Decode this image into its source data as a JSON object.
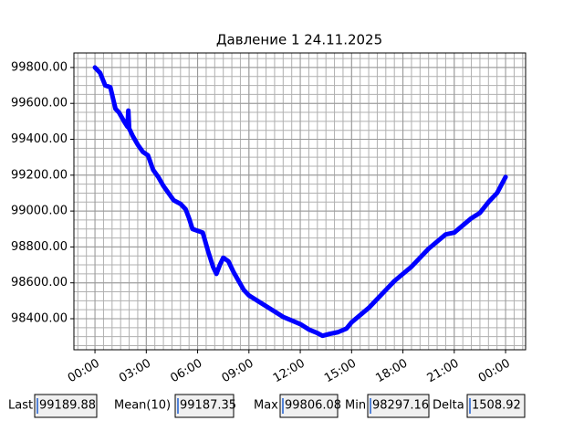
{
  "chart_data": {
    "type": "line",
    "title": "Давление 1 24.11.2025",
    "x": [
      0,
      0.3,
      0.6,
      0.9,
      1.2,
      1.4,
      1.7,
      1.9,
      1.95,
      2.0,
      2.2,
      2.5,
      2.8,
      3.1,
      3.4,
      3.7,
      4.0,
      4.3,
      4.6,
      5.0,
      5.3,
      5.5,
      5.7,
      6.0,
      6.3,
      6.6,
      6.9,
      7.1,
      7.3,
      7.5,
      7.8,
      8.1,
      8.4,
      8.7,
      9.0,
      9.5,
      10.0,
      10.5,
      11.0,
      11.5,
      12.0,
      12.5,
      13.0,
      13.3,
      13.7,
      14.2,
      14.7,
      15.0,
      15.5,
      16.0,
      16.5,
      17.0,
      17.5,
      18.0,
      18.5,
      19.0,
      19.5,
      20.0,
      20.5,
      21.0,
      21.5,
      22.0,
      22.5,
      23.0,
      23.5,
      24.0
    ],
    "series": [
      {
        "color": "#0000ff",
        "values": [
          99800,
          99770,
          99700,
          99690,
          99570,
          99550,
          99500,
          99470,
          99560,
          99460,
          99420,
          99370,
          99330,
          99310,
          99230,
          99190,
          99140,
          99100,
          99060,
          99040,
          99010,
          98960,
          98900,
          98890,
          98880,
          98780,
          98690,
          98650,
          98700,
          98740,
          98720,
          98660,
          98610,
          98560,
          98530,
          98500,
          98470,
          98440,
          98410,
          98390,
          98370,
          98340,
          98320,
          98305,
          98315,
          98325,
          98345,
          98380,
          98420,
          98460,
          98510,
          98560,
          98610,
          98650,
          98690,
          98740,
          98790,
          98830,
          98870,
          98880,
          98920,
          98960,
          98990,
          99050,
          99100,
          99190
        ]
      }
    ],
    "xlim": [
      -1.23,
      25.17
    ],
    "ylim": [
      98227,
      99881
    ],
    "xticks": [
      {
        "value": 0,
        "label": "00:00"
      },
      {
        "value": 3,
        "label": "03:00"
      },
      {
        "value": 6,
        "label": "06:00"
      },
      {
        "value": 9,
        "label": "09:00"
      },
      {
        "value": 12,
        "label": "12:00"
      },
      {
        "value": 15,
        "label": "15:00"
      },
      {
        "value": 18,
        "label": "18:00"
      },
      {
        "value": 21,
        "label": "21:00"
      },
      {
        "value": 24,
        "label": "00:00"
      }
    ],
    "yticks": [
      {
        "value": 98400,
        "label": "98400.00"
      },
      {
        "value": 98600,
        "label": "98600.00"
      },
      {
        "value": 98800,
        "label": "98800.00"
      },
      {
        "value": 99000,
        "label": "99000.00"
      },
      {
        "value": 99200,
        "label": "99200.00"
      },
      {
        "value": 99400,
        "label": "99400.00"
      },
      {
        "value": 99600,
        "label": "99600.00"
      },
      {
        "value": 99800,
        "label": "99800.00"
      }
    ],
    "grid": true,
    "minor_grid_step": {
      "x": 0.5,
      "y": 50
    }
  },
  "stats": [
    {
      "label": "Last",
      "value": "99189.88"
    },
    {
      "label": "Mean(10)",
      "value": "99187.35"
    },
    {
      "label": "Max",
      "value": "99806.08"
    },
    {
      "label": "Min",
      "value": "98297.16"
    },
    {
      "label": "Delta",
      "value": "1508.92"
    }
  ]
}
